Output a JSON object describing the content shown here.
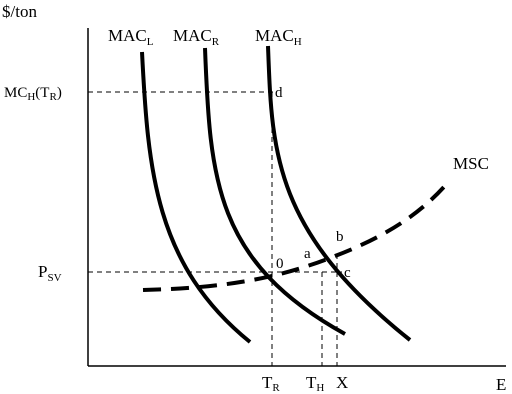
{
  "axes": {
    "y_label": "$/ton",
    "x_label": "E"
  },
  "curves": {
    "mac_low": {
      "base": "MAC",
      "sub": "L"
    },
    "mac_r": {
      "base": "MAC",
      "sub": "R"
    },
    "mac_high": {
      "base": "MAC",
      "sub": "H"
    },
    "msc": "MSC"
  },
  "y_ticks": {
    "mc_label": {
      "pre": "MC",
      "sub1": "H",
      "mid": "(T",
      "sub2": "R",
      "post": ")"
    },
    "psv_label": {
      "base": "P",
      "sub": "SV"
    }
  },
  "x_ticks": {
    "t_r": {
      "base": "T",
      "sub": "R"
    },
    "t_h": {
      "base": "T",
      "sub": "H"
    },
    "x": "X"
  },
  "points": {
    "d": "d",
    "zero": "0",
    "a": "a",
    "b": "b",
    "c": "c"
  },
  "colors": {
    "line": "#000000",
    "background": "#ffffff"
  }
}
